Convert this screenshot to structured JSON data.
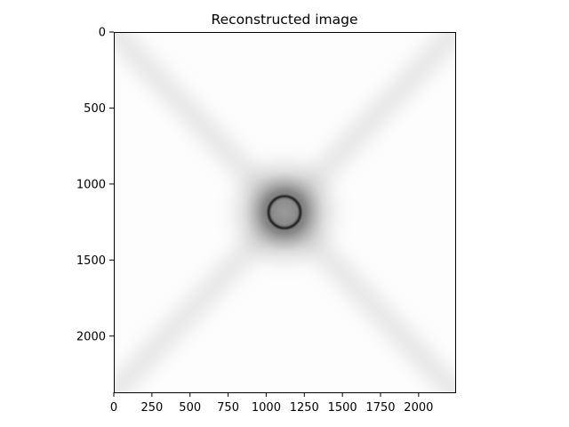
{
  "chart_data": {
    "type": "heatmap",
    "title": "Reconstructed image",
    "xlabel": "",
    "ylabel": "",
    "colormap": "gray (inverted, white background)",
    "xlim": [
      0,
      2240
    ],
    "ylim": [
      2370,
      0
    ],
    "x_ticks": [
      0,
      250,
      500,
      750,
      1000,
      1250,
      1500,
      1750,
      2000
    ],
    "y_ticks": [
      0,
      500,
      1000,
      1500,
      2000
    ],
    "grid": false,
    "features": {
      "ring": {
        "center_x": 1120,
        "center_y": 1185,
        "radius": 105
      },
      "background_streaks": "faint diagonal X pattern from corners to center"
    }
  }
}
